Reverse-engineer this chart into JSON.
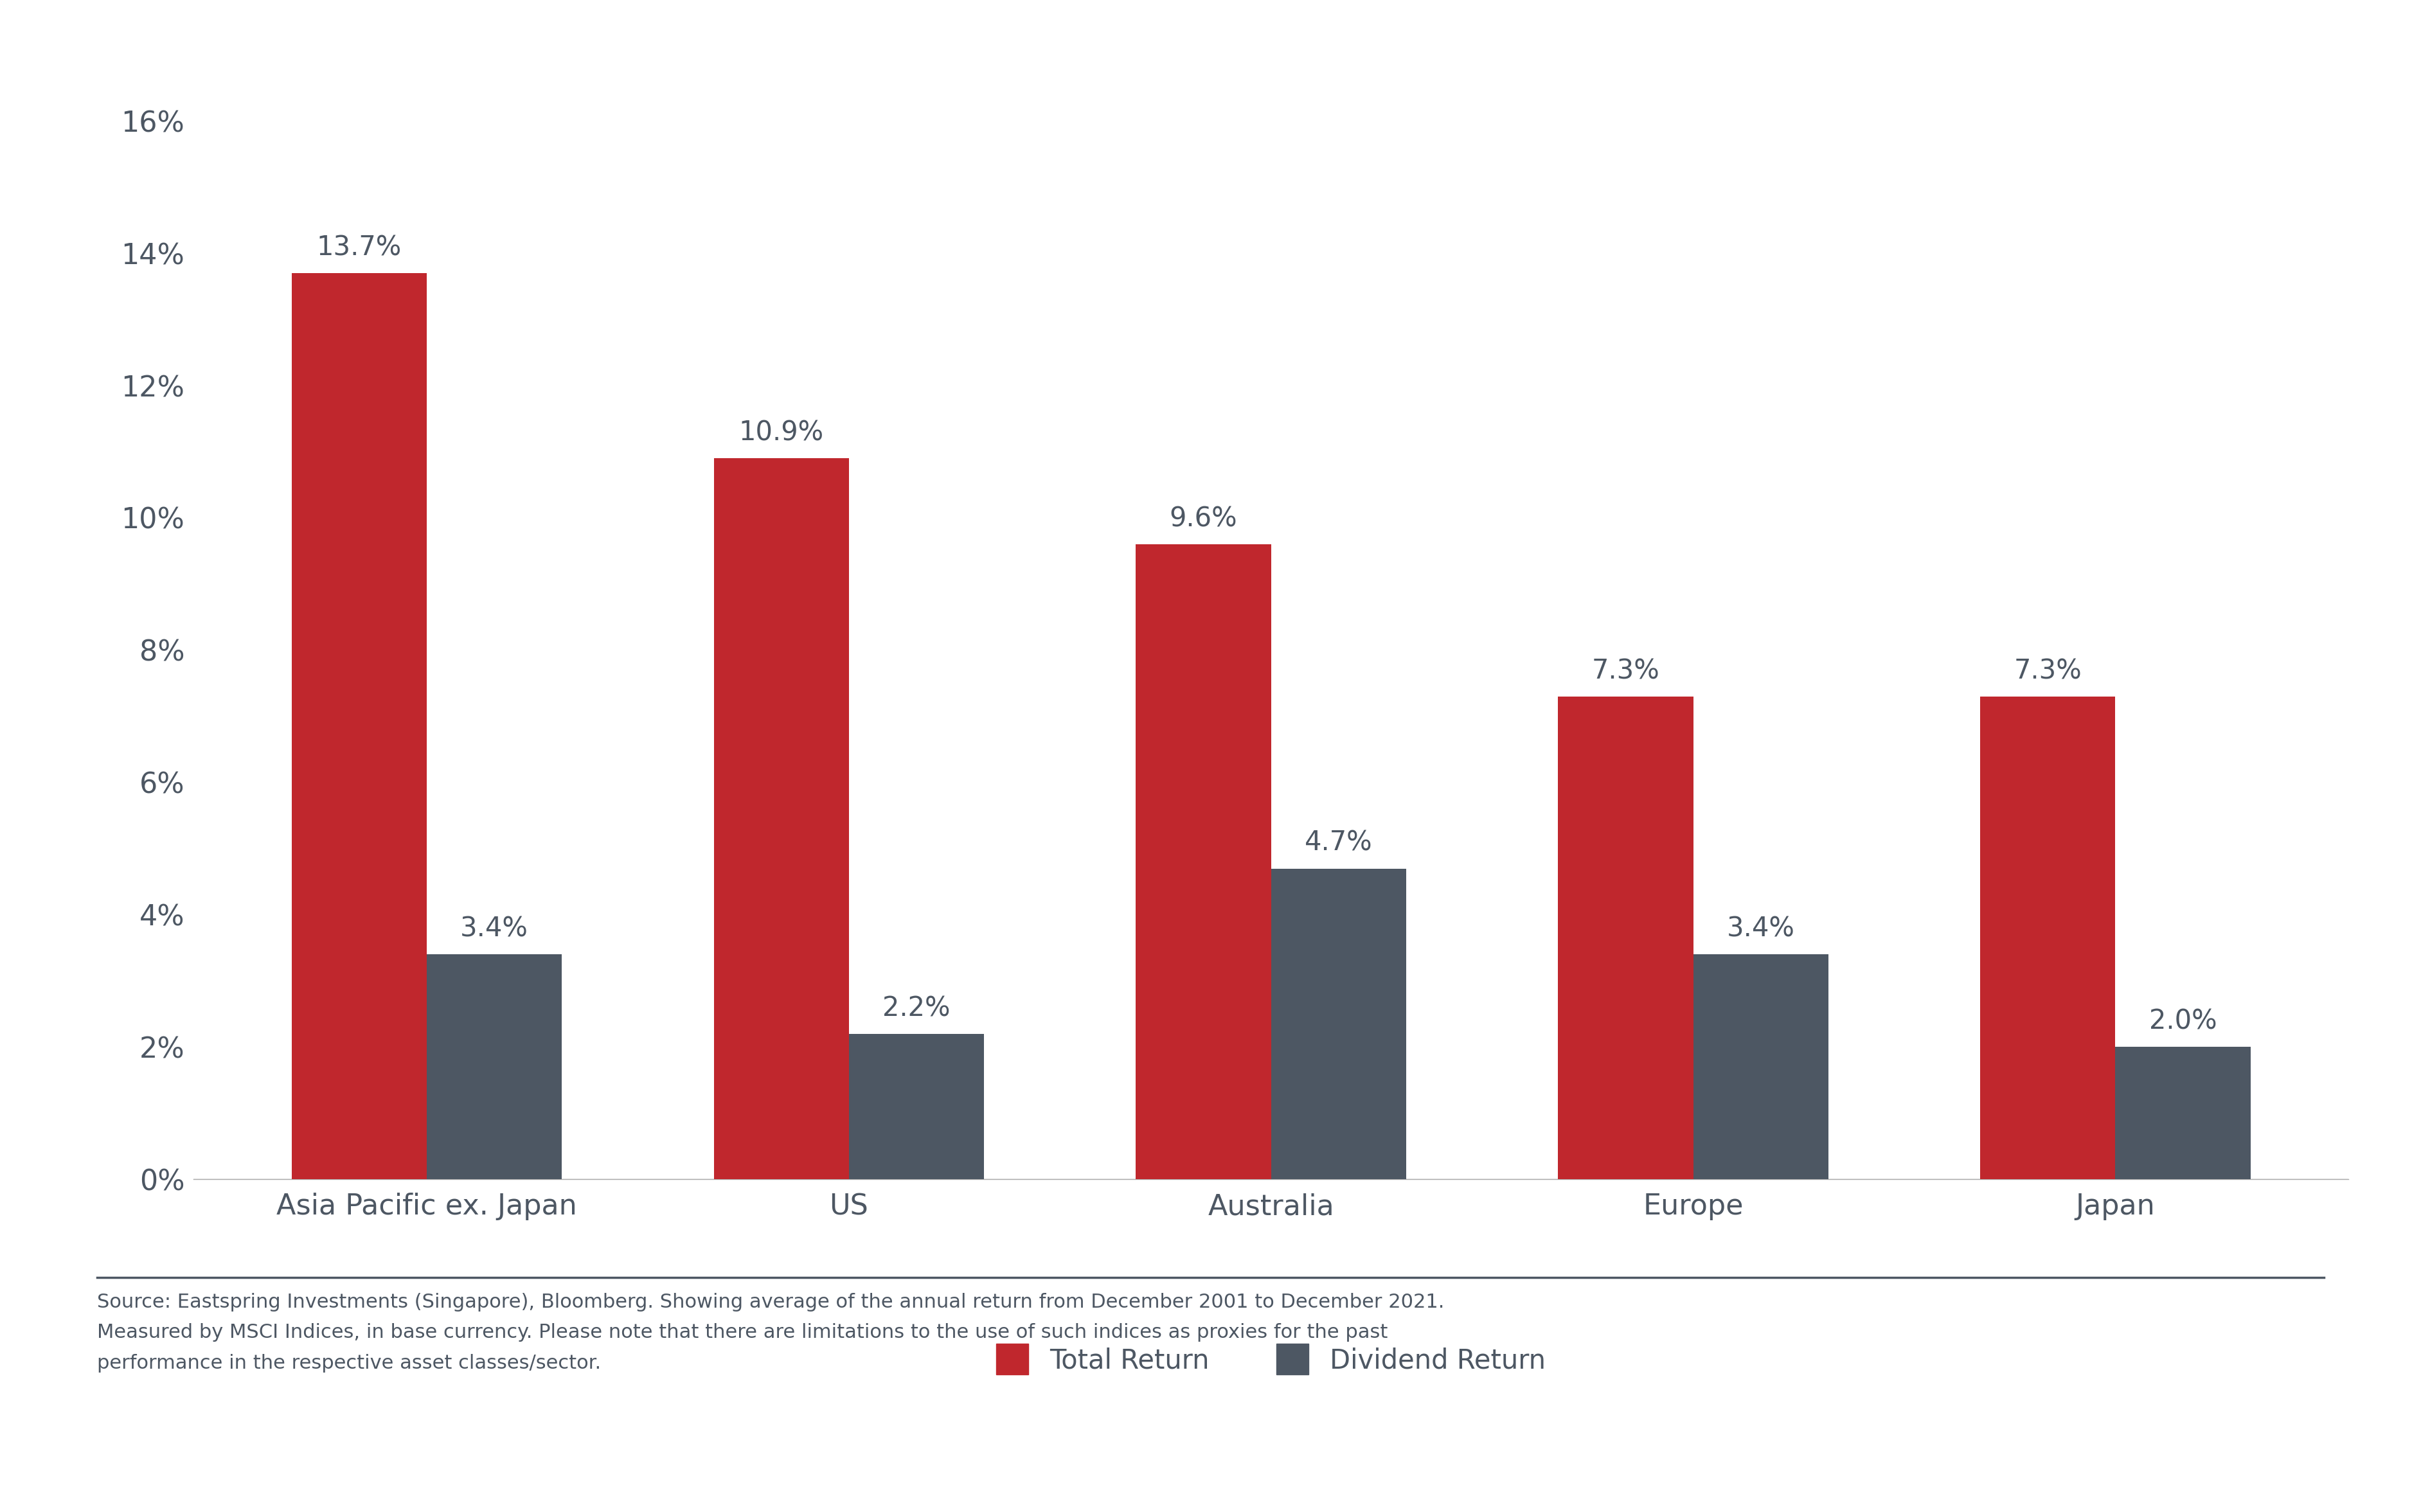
{
  "categories": [
    "Asia Pacific ex. Japan",
    "US",
    "Australia",
    "Europe",
    "Japan"
  ],
  "total_return": [
    13.7,
    10.9,
    9.6,
    7.3,
    7.3
  ],
  "dividend_return": [
    3.4,
    2.2,
    4.7,
    3.4,
    2.0
  ],
  "total_return_labels": [
    "13.7%",
    "10.9%",
    "9.6%",
    "7.3%",
    "7.3%"
  ],
  "dividend_return_labels": [
    "3.4%",
    "2.2%",
    "4.7%",
    "3.4%",
    "2.0%"
  ],
  "total_return_color": "#c0272d",
  "dividend_return_color": "#4d5763",
  "background_color": "#ffffff",
  "ylim": [
    0,
    16
  ],
  "yticks": [
    0,
    2,
    4,
    6,
    8,
    10,
    12,
    14,
    16
  ],
  "ytick_labels": [
    "0%",
    "2%",
    "4%",
    "6%",
    "8%",
    "10%",
    "12%",
    "14%",
    "16%"
  ],
  "legend_total_return": "Total Return",
  "legend_dividend_return": "Dividend Return",
  "bar_width": 0.32,
  "tick_fontsize": 32,
  "legend_fontsize": 30,
  "annotation_fontsize": 30,
  "footer_text": "Source: Eastspring Investments (Singapore), Bloomberg. Showing average of the annual return from December 2001 to December 2021.\nMeasured by MSCI Indices, in base currency. Please note that there are limitations to the use of such indices as proxies for the past\nperformance in the respective asset classes/sector.",
  "footer_fontsize": 22,
  "divider_color": "#4d5763",
  "text_color": "#4d5763"
}
